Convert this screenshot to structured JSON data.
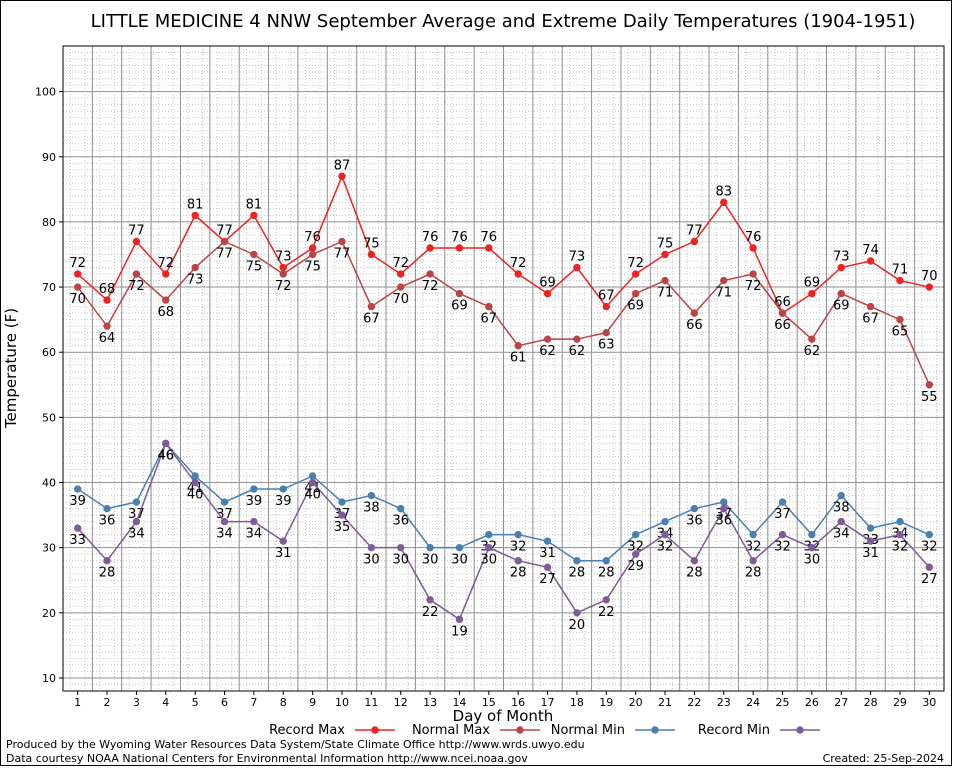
{
  "chart_data": {
    "type": "line",
    "title": "LITTLE MEDICINE 4 NNW September Average and Extreme Daily Temperatures (1904-1951)",
    "xlabel": "Day of Month",
    "ylabel": "Temperature (F)",
    "x": [
      1,
      2,
      3,
      4,
      5,
      6,
      7,
      8,
      9,
      10,
      11,
      12,
      13,
      14,
      15,
      16,
      17,
      18,
      19,
      20,
      21,
      22,
      23,
      24,
      25,
      26,
      27,
      28,
      29,
      30
    ],
    "xlim": [
      0.5,
      30.5
    ],
    "ylim": [
      8,
      107
    ],
    "yticks": [
      10,
      20,
      30,
      40,
      50,
      60,
      70,
      80,
      90,
      100
    ],
    "grid": true,
    "legend_position": "bottom",
    "series": [
      {
        "name": "Record Max",
        "color": "#ee2222",
        "values": [
          72,
          68,
          77,
          72,
          81,
          77,
          81,
          73,
          76,
          87,
          75,
          72,
          76,
          76,
          76,
          72,
          69,
          73,
          67,
          72,
          75,
          77,
          83,
          76,
          66,
          69,
          73,
          74,
          71,
          70
        ]
      },
      {
        "name": "Normal Max",
        "color": "#bb4444",
        "values": [
          70,
          64,
          72,
          68,
          73,
          77,
          75,
          72,
          75,
          77,
          67,
          70,
          72,
          69,
          67,
          61,
          62,
          62,
          63,
          69,
          71,
          66,
          71,
          72,
          66,
          62,
          69,
          67,
          65,
          55
        ]
      },
      {
        "name": "Normal Min",
        "color": "#4a7fb0",
        "values": [
          39,
          36,
          37,
          46,
          41,
          37,
          39,
          39,
          41,
          37,
          38,
          36,
          30,
          30,
          32,
          32,
          31,
          28,
          28,
          32,
          34,
          36,
          37,
          32,
          37,
          32,
          38,
          33,
          34,
          32
        ]
      },
      {
        "name": "Record Min",
        "color": "#7f5b9a",
        "values": [
          33,
          28,
          34,
          46,
          40,
          34,
          34,
          31,
          40,
          35,
          30,
          30,
          22,
          19,
          30,
          28,
          27,
          20,
          22,
          29,
          32,
          28,
          36,
          28,
          32,
          30,
          34,
          31,
          32,
          27
        ]
      }
    ]
  },
  "footer": {
    "produced_by": "Produced by the Wyoming Water Resources Data System/State Climate Office http://www.wrds.uwyo.edu",
    "courtesy": "Data courtesy NOAA National Centers for Environmental Information http://www.ncei.noaa.gov",
    "created": "Created:  25-Sep-2024"
  }
}
